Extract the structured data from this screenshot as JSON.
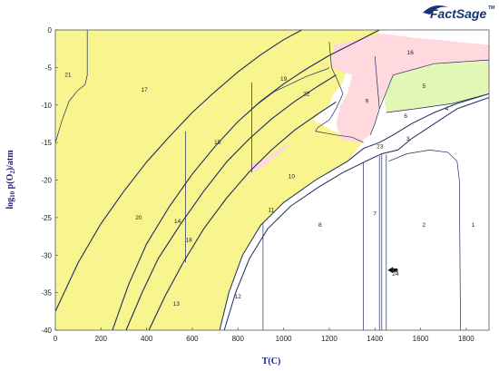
{
  "logo": {
    "text": "FactSage",
    "tm": "TM",
    "color": "#16347a"
  },
  "chart_data": {
    "type": "area",
    "title": "",
    "xlabel": "T(C)",
    "ylabel_main": "log",
    "ylabel_sub": "10",
    "ylabel_rest1": " p(O",
    "ylabel_sub2": "2",
    "ylabel_rest2": ")/atm",
    "xlim": [
      0,
      1900
    ],
    "ylim": [
      -40,
      0
    ],
    "x_ticks": [
      0,
      200,
      400,
      600,
      800,
      1000,
      1200,
      1400,
      1600,
      1800
    ],
    "y_ticks": [
      0,
      -5,
      -10,
      -15,
      -20,
      -25,
      -30,
      -35,
      -40
    ],
    "colors": {
      "yellow": "#f8f58e",
      "pink": "#ffd9de",
      "green": "#e2f7b6",
      "white": "#ffffff",
      "line": "#1f2a60"
    },
    "region_labels": [
      {
        "id": "1",
        "x": 1830,
        "y": -26
      },
      {
        "id": "2",
        "x": 1615,
        "y": -26
      },
      {
        "id": "3",
        "x": 1545,
        "y": -14.5
      },
      {
        "id": "4",
        "x": 1715,
        "y": -10.5
      },
      {
        "id": "5",
        "x": 1615,
        "y": -7.5
      },
      {
        "id": "6",
        "x": 1535,
        "y": -11.5
      },
      {
        "id": "7",
        "x": 1400,
        "y": -24.5
      },
      {
        "id": "8",
        "x": 1160,
        "y": -26
      },
      {
        "id": "9",
        "x": 1365,
        "y": -9.5
      },
      {
        "id": "10",
        "x": 1035,
        "y": -19.5
      },
      {
        "id": "11",
        "x": 945,
        "y": -24
      },
      {
        "id": "12",
        "x": 800,
        "y": -35.5
      },
      {
        "id": "13",
        "x": 530,
        "y": -36.5
      },
      {
        "id": "14",
        "x": 535,
        "y": -25.5
      },
      {
        "id": "15",
        "x": 710,
        "y": -15
      },
      {
        "id": "16",
        "x": 1555,
        "y": -3
      },
      {
        "id": "17",
        "x": 390,
        "y": -8
      },
      {
        "id": "18",
        "x": 585,
        "y": -28
      },
      {
        "id": "19",
        "x": 1000,
        "y": -6.5
      },
      {
        "id": "20",
        "x": 365,
        "y": -25
      },
      {
        "id": "21",
        "x": 55,
        "y": -6
      },
      {
        "id": "22",
        "x": 1100,
        "y": -8.5
      },
      {
        "id": "23",
        "x": 1422,
        "y": -15.5
      },
      {
        "id": "24",
        "x": 1490,
        "y": -32.5
      }
    ],
    "marker": {
      "label": "24",
      "x": 1440,
      "y": -32
    }
  }
}
